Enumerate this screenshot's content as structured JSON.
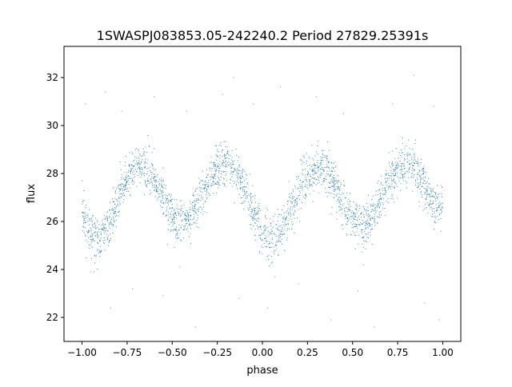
{
  "chart_data": {
    "type": "scatter",
    "title": "1SWASPJ083853.05-242240.2 Period 27829.25391s",
    "xlabel": "phase",
    "ylabel": "flux",
    "xlim": [
      -1.1,
      1.1
    ],
    "ylim": [
      21.0,
      33.3
    ],
    "xticks": [
      -1.0,
      -0.75,
      -0.5,
      -0.25,
      0.0,
      0.25,
      0.5,
      0.75,
      1.0
    ],
    "xtick_labels": [
      "−1.00",
      "−0.75",
      "−0.50",
      "−0.25",
      "0.00",
      "0.25",
      "0.50",
      "0.75",
      "1.00"
    ],
    "yticks": [
      22,
      24,
      26,
      28,
      30,
      32
    ],
    "ytick_labels": [
      "22",
      "24",
      "26",
      "28",
      "30",
      "32"
    ],
    "grid": false,
    "legend": "none",
    "marker_color": "#1f77b4",
    "series": [
      {
        "phase": [
          -1.0,
          -0.95,
          -0.9,
          -0.85,
          -0.8,
          -0.75,
          -0.7,
          -0.65,
          -0.6,
          -0.55,
          -0.5,
          -0.45,
          -0.4,
          -0.35,
          -0.3,
          -0.25,
          -0.2,
          -0.15,
          -0.1,
          -0.05,
          0.0,
          0.05,
          0.1,
          0.15,
          0.2,
          0.25,
          0.3,
          0.35,
          0.4,
          0.45,
          0.5,
          0.55,
          0.6,
          0.65,
          0.7,
          0.75,
          0.8,
          0.85,
          0.9,
          0.95,
          1.0
        ],
        "flux": [
          26.5,
          25.5,
          25.2,
          25.9,
          26.9,
          27.8,
          28.3,
          28.3,
          27.8,
          27.0,
          26.1,
          25.8,
          26.1,
          26.9,
          27.6,
          28.2,
          28.4,
          28.1,
          27.4,
          26.4,
          25.6,
          25.2,
          25.5,
          26.3,
          27.2,
          27.9,
          28.3,
          28.2,
          27.6,
          26.7,
          26.0,
          25.8,
          26.1,
          26.8,
          27.6,
          28.2,
          28.4,
          28.1,
          27.5,
          26.7,
          26.5
        ],
        "scatter_sd": 0.45
      }
    ],
    "outliers": [
      {
        "x": -0.98,
        "y": 30.9
      },
      {
        "x": -0.87,
        "y": 31.4
      },
      {
        "x": -0.84,
        "y": 22.4
      },
      {
        "x": -0.78,
        "y": 30.6
      },
      {
        "x": -0.72,
        "y": 23.2
      },
      {
        "x": -0.6,
        "y": 31.2
      },
      {
        "x": -0.55,
        "y": 22.9
      },
      {
        "x": -0.42,
        "y": 30.6
      },
      {
        "x": -0.37,
        "y": 21.6
      },
      {
        "x": -0.22,
        "y": 31.3
      },
      {
        "x": -0.16,
        "y": 32.0
      },
      {
        "x": -0.13,
        "y": 22.8
      },
      {
        "x": -0.05,
        "y": 30.9
      },
      {
        "x": 0.03,
        "y": 22.4
      },
      {
        "x": 0.1,
        "y": 31.6
      },
      {
        "x": 0.2,
        "y": 23.4
      },
      {
        "x": 0.3,
        "y": 31.2
      },
      {
        "x": 0.38,
        "y": 21.9
      },
      {
        "x": 0.45,
        "y": 30.5
      },
      {
        "x": 0.53,
        "y": 23.1
      },
      {
        "x": 0.62,
        "y": 21.6
      },
      {
        "x": 0.72,
        "y": 30.9
      },
      {
        "x": 0.84,
        "y": 32.1
      },
      {
        "x": 0.9,
        "y": 22.6
      },
      {
        "x": 0.95,
        "y": 30.8
      },
      {
        "x": 0.98,
        "y": 21.9
      },
      {
        "x": -0.95,
        "y": 23.9
      },
      {
        "x": 0.07,
        "y": 23.7
      },
      {
        "x": 0.56,
        "y": 24.2
      },
      {
        "x": -0.46,
        "y": 24.1
      }
    ]
  }
}
